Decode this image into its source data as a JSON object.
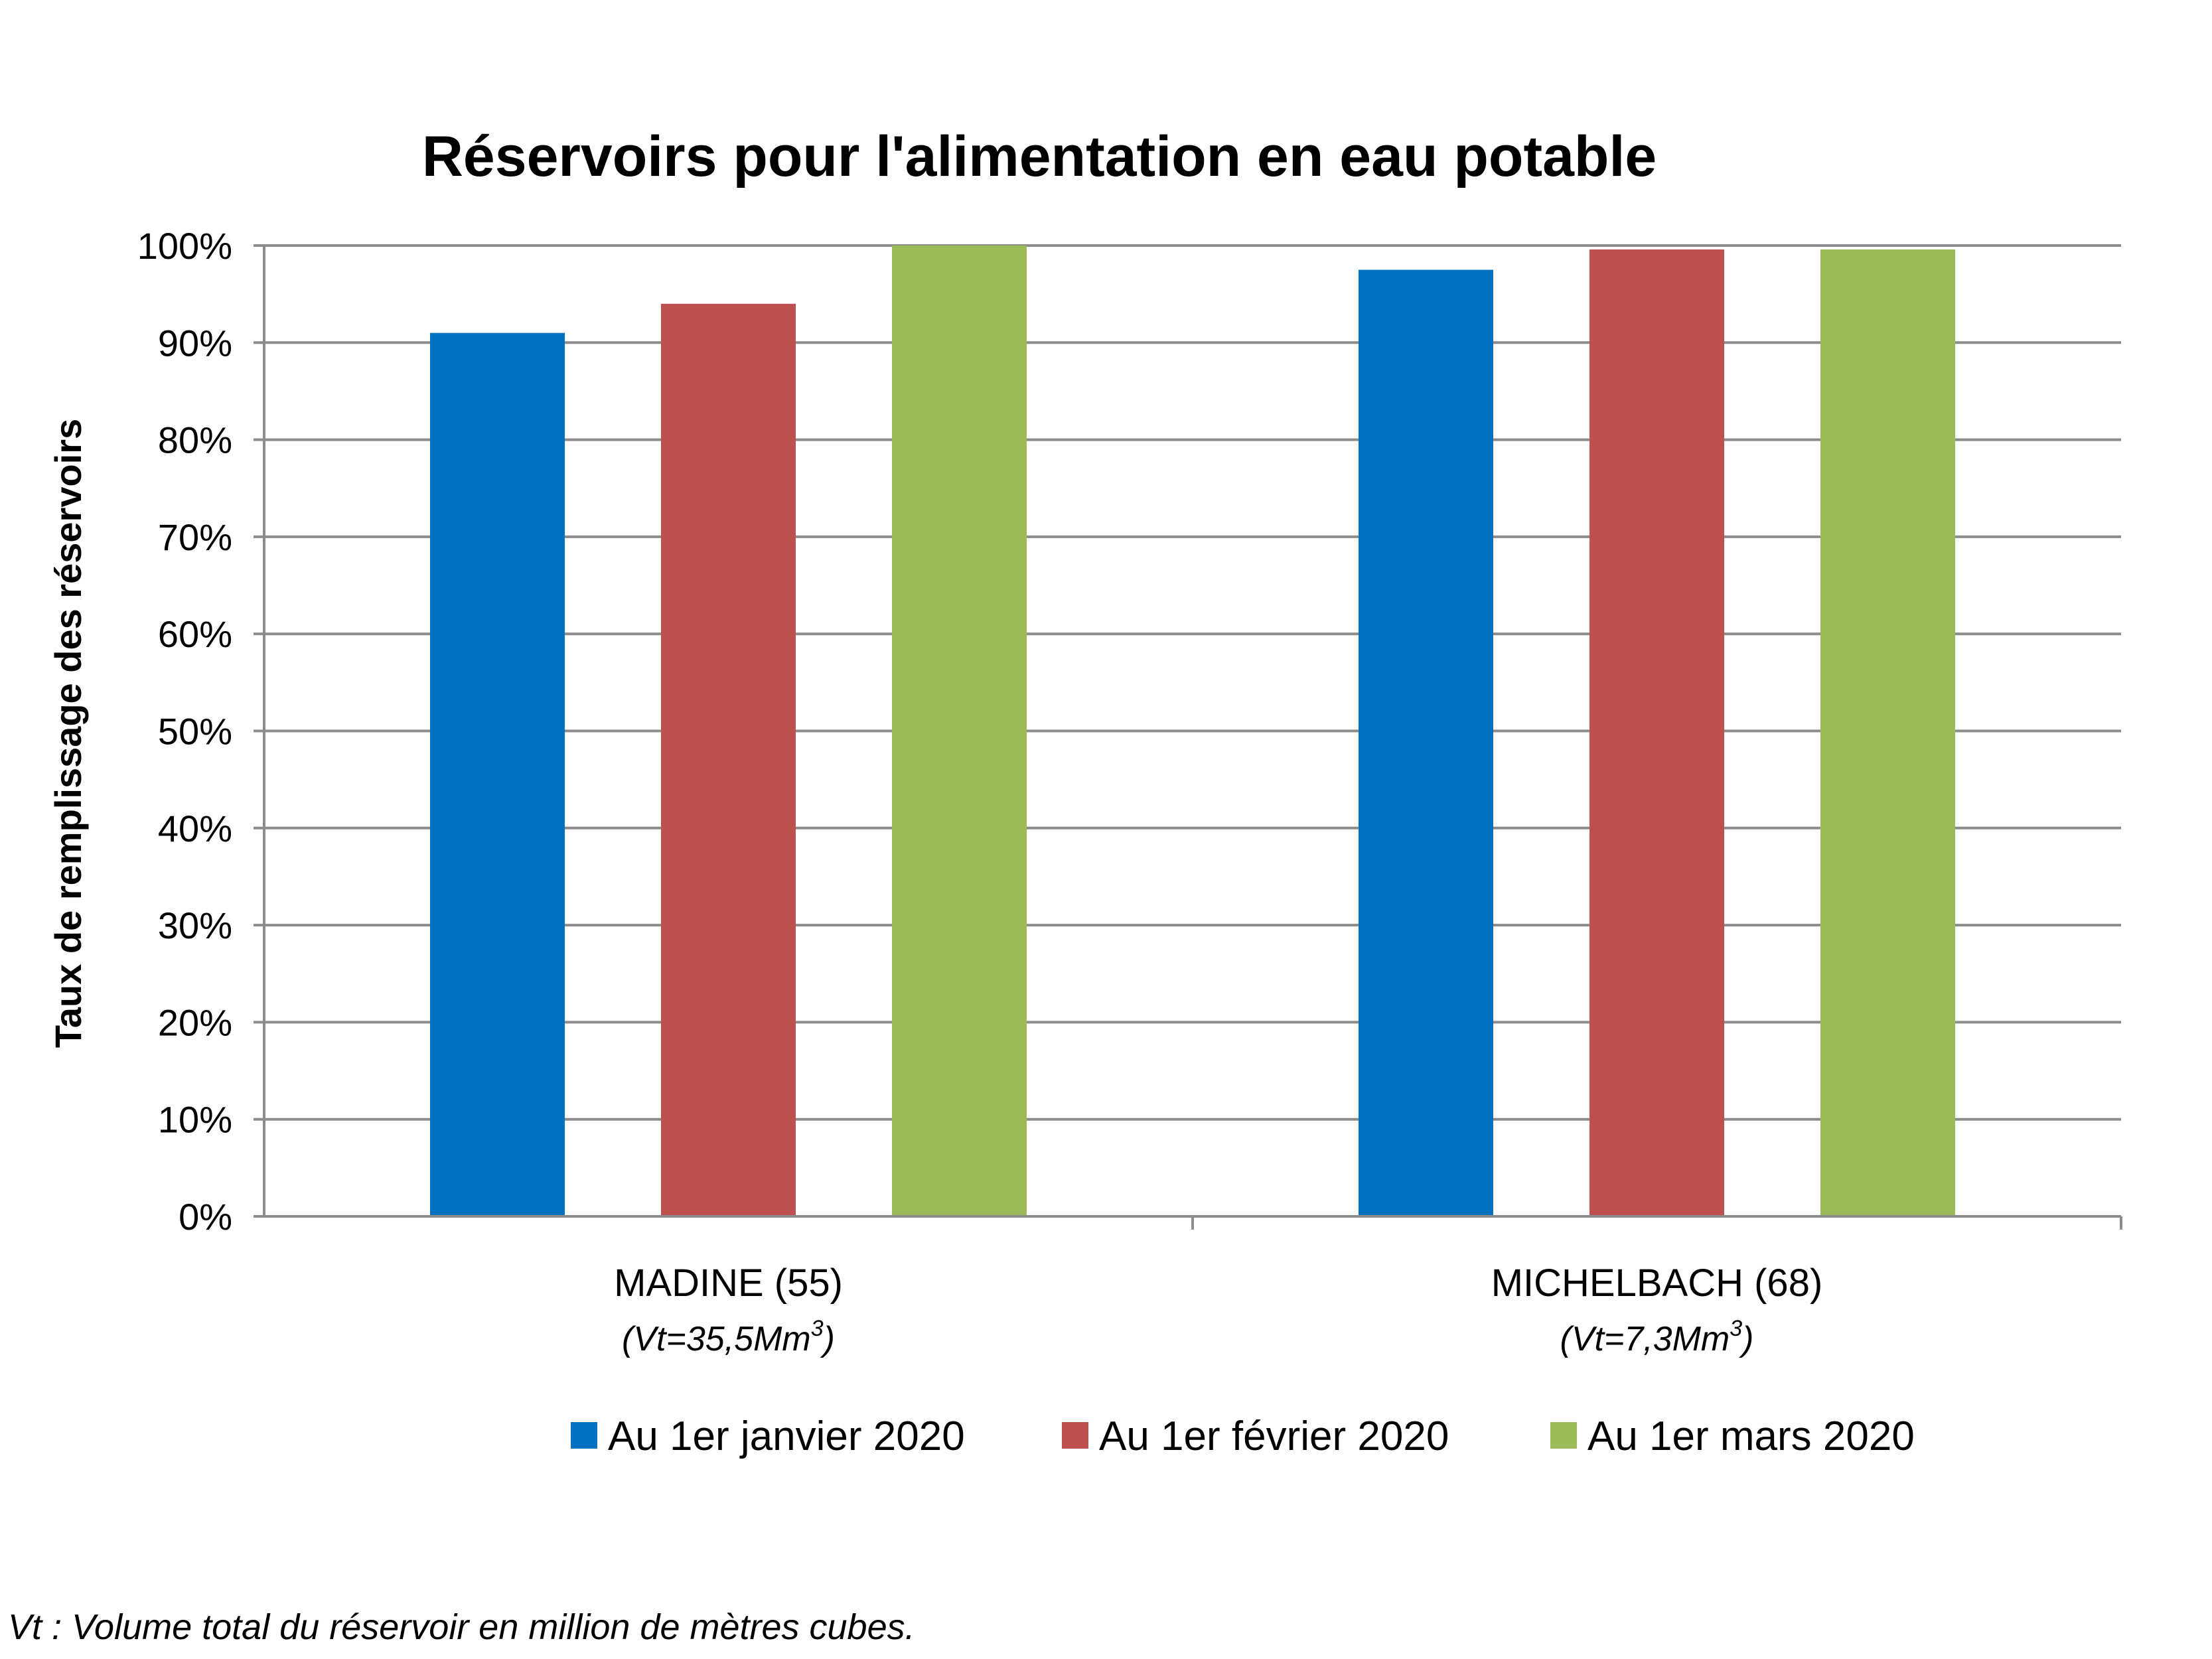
{
  "chart_data": {
    "type": "bar",
    "title": "Réservoirs pour l'alimentation en eau potable",
    "ylabel": "Taux de remplissage des réservoirs",
    "xlabel": "",
    "ylim": [
      0,
      100
    ],
    "yticks": [
      "0%",
      "10%",
      "20%",
      "30%",
      "40%",
      "50%",
      "60%",
      "70%",
      "80%",
      "90%",
      "100%"
    ],
    "grid": true,
    "legend_position": "bottom",
    "categories": [
      "MADINE (55)",
      "MICHELBACH (68)"
    ],
    "category_subtitles": [
      {
        "prefix": "(Vt=35,5Mm",
        "sup": "3",
        "suffix": ")"
      },
      {
        "prefix": "(Vt=7,3Mm",
        "sup": "3",
        "suffix": ")"
      }
    ],
    "series": [
      {
        "name": "Au 1er janvier 2020",
        "color": "#0070C0",
        "values": [
          91,
          97.5
        ]
      },
      {
        "name": "Au 1er février 2020",
        "color": "#C0504D",
        "values": [
          94,
          99.6
        ]
      },
      {
        "name": "Au 1er mars 2020",
        "color": "#9BBB59",
        "values": [
          100,
          99.6
        ]
      }
    ],
    "footnote": "Vt : Volume total du réservoir en million de mètres cubes."
  }
}
